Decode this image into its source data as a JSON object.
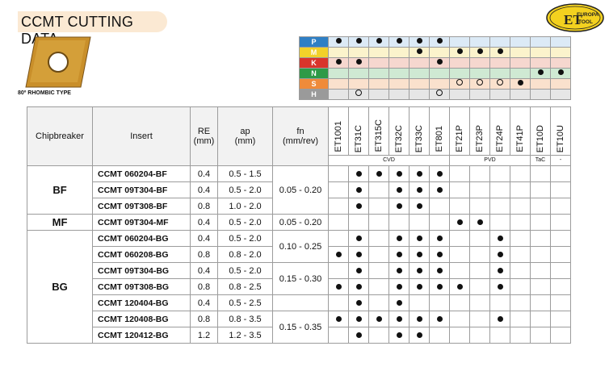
{
  "title": "CCMT CUTTING DATA",
  "logo": {
    "line1": "EUROPA",
    "line2": "TOOL",
    "mark": "ET"
  },
  "insert_type": "80º RHOMBIC TYPE",
  "iso_groups": [
    {
      "label": "P",
      "color": "#2f7fc4",
      "band": "#dceaf6",
      "marks": [
        "dot",
        "dot",
        "dot",
        "dot",
        "dot",
        "dot",
        "",
        "",
        "",
        "",
        "",
        ""
      ]
    },
    {
      "label": "M",
      "color": "#f2d12a",
      "band": "#fbf3cc",
      "marks": [
        "",
        "",
        "",
        "",
        "dot",
        "",
        "dot",
        "dot",
        "dot",
        "",
        "",
        ""
      ]
    },
    {
      "label": "K",
      "color": "#d9342b",
      "band": "#f6d7cf",
      "marks": [
        "dot",
        "dot",
        "",
        "",
        "",
        "dot",
        "",
        "",
        "",
        "",
        "",
        ""
      ]
    },
    {
      "label": "N",
      "color": "#2e9a47",
      "band": "#cfe9d3",
      "marks": [
        "",
        "",
        "",
        "",
        "",
        "",
        "",
        "",
        "",
        "",
        "dot",
        "dot"
      ]
    },
    {
      "label": "S",
      "color": "#ef8b3a",
      "band": "#fae1cd",
      "marks": [
        "",
        "",
        "",
        "",
        "",
        "",
        "circ",
        "circ",
        "circ",
        "dot",
        "",
        ""
      ]
    },
    {
      "label": "H",
      "color": "#9a9a9a",
      "band": "#e6e6e6",
      "marks": [
        "",
        "circ",
        "",
        "",
        "",
        "circ",
        "",
        "",
        "",
        "",
        "",
        ""
      ]
    }
  ],
  "headers": {
    "chipbreaker": "Chipbreaker",
    "insert": "Insert",
    "re": "RE",
    "re_unit": "(mm)",
    "ap": "ap",
    "ap_unit": "(mm)",
    "fn": "fn",
    "fn_unit": "(mm/rev)"
  },
  "grades": [
    "ET1001",
    "ET31C",
    "ET315C",
    "ET32C",
    "ET33C",
    "ET801",
    "ET21P",
    "ET23P",
    "ET24P",
    "ET41P",
    "ET10D",
    "ET10U"
  ],
  "processes": {
    "cvd": "CVD",
    "pvd": "PVD",
    "tac": "TaC",
    "dash": "-"
  },
  "groups": [
    {
      "chipbreaker": "BF",
      "fn": [
        {
          "value": "0.05 - 0.20",
          "rows": 3
        }
      ],
      "rows": [
        {
          "insert": "CCMT 060204-BF",
          "re": "0.4",
          "ap": "0.5 - 1.5",
          "marks": [
            "",
            "dot",
            "dot",
            "dot",
            "dot",
            "dot",
            "",
            "",
            "",
            "",
            "",
            ""
          ]
        },
        {
          "insert": "CCMT 09T304-BF",
          "re": "0.4",
          "ap": "0.5 - 2.0",
          "marks": [
            "",
            "dot",
            "",
            "dot",
            "dot",
            "dot",
            "",
            "",
            "",
            "",
            "",
            ""
          ]
        },
        {
          "insert": "CCMT 09T308-BF",
          "re": "0.8",
          "ap": "1.0 - 2.0",
          "marks": [
            "",
            "dot",
            "",
            "dot",
            "dot",
            "",
            "",
            "",
            "",
            "",
            "",
            ""
          ]
        }
      ]
    },
    {
      "chipbreaker": "MF",
      "fn": [
        {
          "value": "0.05 - 0.20",
          "rows": 1
        }
      ],
      "rows": [
        {
          "insert": "CCMT 09T304-MF",
          "re": "0.4",
          "ap": "0.5 - 2.0",
          "marks": [
            "",
            "",
            "",
            "",
            "",
            "",
            "dot",
            "dot",
            "",
            "",
            "",
            ""
          ]
        }
      ]
    },
    {
      "chipbreaker": "BG",
      "fn": [
        {
          "value": "0.10 - 0.25",
          "rows": 2
        },
        {
          "value": "0.15 - 0.30",
          "rows": 2
        },
        {
          "value": "",
          "rows": 1
        },
        {
          "value": "0.15 - 0.35",
          "rows": 2
        }
      ],
      "rows": [
        {
          "insert": "CCMT 060204-BG",
          "re": "0.4",
          "ap": "0.5 - 2.0",
          "marks": [
            "",
            "dot",
            "",
            "dot",
            "dot",
            "dot",
            "",
            "",
            "dot",
            "",
            "",
            ""
          ]
        },
        {
          "insert": "CCMT 060208-BG",
          "re": "0.8",
          "ap": "0.8 - 2.0",
          "marks": [
            "dot",
            "dot",
            "",
            "dot",
            "dot",
            "dot",
            "",
            "",
            "dot",
            "",
            "",
            ""
          ]
        },
        {
          "insert": "CCMT 09T304-BG",
          "re": "0.4",
          "ap": "0.5 - 2.0",
          "marks": [
            "",
            "dot",
            "",
            "dot",
            "dot",
            "dot",
            "",
            "",
            "dot",
            "",
            "",
            ""
          ]
        },
        {
          "insert": "CCMT 09T308-BG",
          "re": "0.8",
          "ap": "0.8 - 2.5",
          "marks": [
            "dot",
            "dot",
            "",
            "dot",
            "dot",
            "dot",
            "dot",
            "",
            "dot",
            "",
            "",
            ""
          ]
        },
        {
          "insert": "CCMT 120404-BG",
          "re": "0.4",
          "ap": "0.5 - 2.5",
          "marks": [
            "",
            "dot",
            "",
            "dot",
            "",
            "",
            "",
            "",
            "",
            "",
            "",
            ""
          ]
        },
        {
          "insert": "CCMT 120408-BG",
          "re": "0.8",
          "ap": "0.8 - 3.5",
          "marks": [
            "dot",
            "dot",
            "dot",
            "dot",
            "dot",
            "dot",
            "",
            "",
            "dot",
            "",
            "",
            ""
          ]
        },
        {
          "insert": "CCMT 120412-BG",
          "re": "1.2",
          "ap": "1.2 - 3.5",
          "marks": [
            "",
            "dot",
            "",
            "dot",
            "dot",
            "",
            "",
            "",
            "",
            "",
            "",
            ""
          ]
        }
      ]
    }
  ]
}
